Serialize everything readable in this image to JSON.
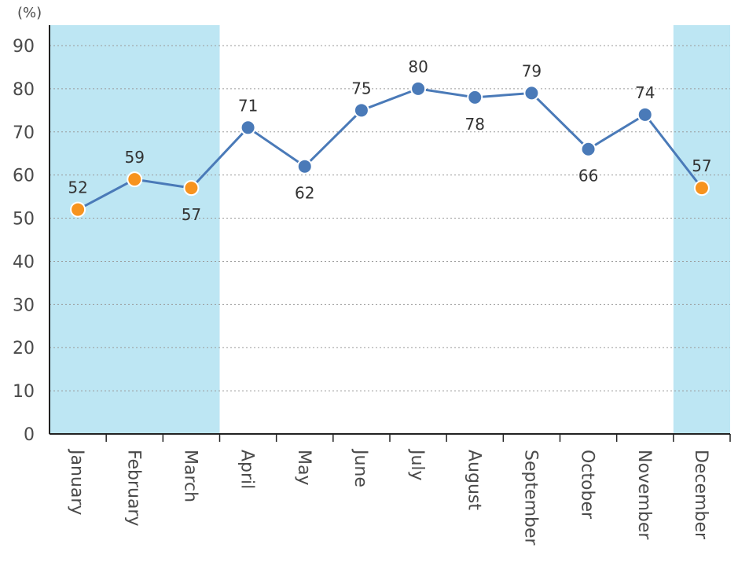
{
  "chart_data": {
    "type": "line",
    "y_unit": "(%)",
    "categories": [
      "January",
      "February",
      "March",
      "April",
      "May",
      "June",
      "July",
      "August",
      "September",
      "October",
      "November",
      "December"
    ],
    "values": [
      52,
      59,
      57,
      71,
      62,
      75,
      80,
      78,
      79,
      66,
      74,
      57
    ],
    "ylim": [
      0,
      90
    ],
    "yticks": [
      0,
      10,
      20,
      30,
      40,
      50,
      60,
      70,
      80,
      90
    ],
    "grid": true,
    "highlighted_months": [
      "January",
      "February",
      "March",
      "December"
    ],
    "colors": {
      "line": "#4a7ab8",
      "marker_default": "#4a7ab8",
      "marker_highlight": "#f7931e",
      "band": "#bde6f3",
      "grid": "#9a9a9a",
      "axis": "#222222"
    }
  }
}
